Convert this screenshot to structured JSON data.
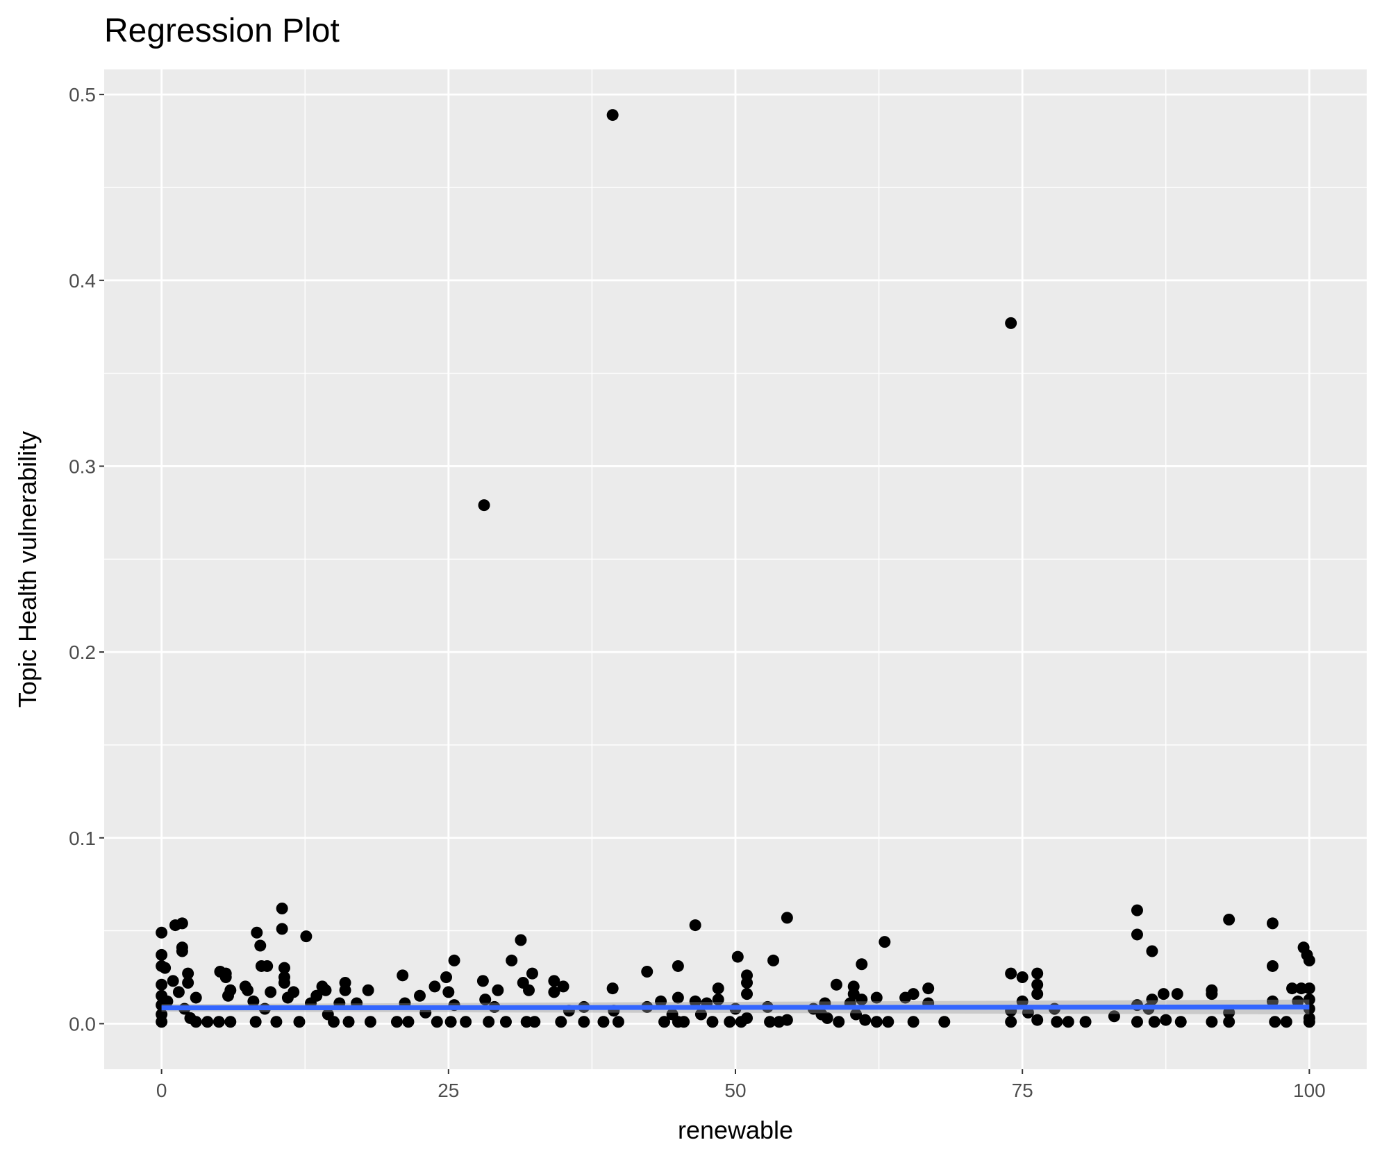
{
  "chart_data": {
    "type": "scatter",
    "title": "Regression Plot",
    "x_label": "renewable",
    "y_label": "Topic Health vulnerability",
    "x": [
      0,
      0,
      0,
      0.3,
      0,
      0,
      0,
      0,
      0,
      0.5,
      1,
      1.2,
      1.8,
      1.8,
      1.8,
      2.3,
      2.3,
      1.5,
      2,
      2.5,
      3,
      3,
      4,
      5,
      5.1,
      5.6,
      5.6,
      5.8,
      6,
      6,
      7.3,
      7.5,
      8,
      8.2,
      8.3,
      8.6,
      8.7,
      9.2,
      9.5,
      9,
      10,
      10.5,
      10.5,
      10.7,
      10.7,
      10.7,
      11,
      11.5,
      12,
      12.6,
      13,
      13.5,
      14,
      14.3,
      14.5,
      15,
      15.5,
      16,
      16,
      16.3,
      17,
      18,
      18.2,
      20.5,
      21,
      21.2,
      21.5,
      22.5,
      23,
      23.8,
      24,
      24.8,
      25,
      25.2,
      25.5,
      25.5,
      26.5,
      28,
      28.1,
      28.2,
      28.5,
      29,
      29.3,
      30,
      30.5,
      31.3,
      31.5,
      31.8,
      32,
      32.3,
      32.5,
      34.2,
      34.2,
      34.8,
      35,
      35.5,
      36.8,
      36.8,
      38.5,
      39.3,
      39.3,
      39.4,
      39.8,
      42.3,
      42.3,
      43.5,
      43.8,
      44.5,
      45,
      45,
      45,
      45.5,
      46.5,
      46.5,
      47,
      47.5,
      48,
      48.5,
      48.5,
      49.5,
      50,
      50.2,
      50.5,
      51,
      51,
      51,
      51,
      52.8,
      53,
      53.3,
      53.8,
      54.5,
      54.5,
      56.8,
      57.5,
      57.8,
      58,
      58.8,
      59,
      60,
      60.3,
      60.3,
      60.5,
      61,
      61,
      61.3,
      62.3,
      62.3,
      63,
      63.3,
      64.8,
      65.5,
      65.5,
      66.8,
      66.8,
      68.2,
      74,
      74,
      74,
      74,
      75,
      75,
      75.5,
      76.3,
      76.3,
      76.3,
      76.3,
      77.8,
      78,
      79,
      80.5,
      83,
      85,
      85,
      85,
      85,
      86,
      86.3,
      86.3,
      86.5,
      87.3,
      87.5,
      88.5,
      88.8,
      91.5,
      91.5,
      91.5,
      93,
      93,
      93,
      96.8,
      96.8,
      96.8,
      97,
      98,
      98.5,
      99,
      99.3,
      99.5,
      99.8,
      100,
      100,
      100,
      100,
      100,
      100
    ],
    "y": [
      0.049,
      0.037,
      0.031,
      0.03,
      0.021,
      0.015,
      0.01,
      0.005,
      0.001,
      0.012,
      0.023,
      0.053,
      0.054,
      0.041,
      0.039,
      0.027,
      0.022,
      0.017,
      0.008,
      0.003,
      0.014,
      0.001,
      0.001,
      0.001,
      0.028,
      0.027,
      0.025,
      0.015,
      0.018,
      0.001,
      0.02,
      0.018,
      0.012,
      0.001,
      0.049,
      0.042,
      0.031,
      0.031,
      0.017,
      0.008,
      0.001,
      0.062,
      0.051,
      0.03,
      0.025,
      0.022,
      0.014,
      0.017,
      0.001,
      0.047,
      0.011,
      0.015,
      0.02,
      0.018,
      0.005,
      0.001,
      0.011,
      0.022,
      0.018,
      0.001,
      0.011,
      0.018,
      0.001,
      0.001,
      0.026,
      0.011,
      0.001,
      0.015,
      0.006,
      0.02,
      0.001,
      0.025,
      0.017,
      0.001,
      0.034,
      0.01,
      0.001,
      0.023,
      0.279,
      0.013,
      0.001,
      0.009,
      0.018,
      0.001,
      0.034,
      0.045,
      0.022,
      0.001,
      0.018,
      0.027,
      0.001,
      0.023,
      0.017,
      0.001,
      0.02,
      0.007,
      0.009,
      0.001,
      0.001,
      0.489,
      0.019,
      0.007,
      0.001,
      0.028,
      0.009,
      0.012,
      0.001,
      0.005,
      0.001,
      0.031,
      0.014,
      0.001,
      0.053,
      0.012,
      0.005,
      0.011,
      0.001,
      0.019,
      0.013,
      0.001,
      0.008,
      0.036,
      0.001,
      0.026,
      0.022,
      0.016,
      0.003,
      0.009,
      0.001,
      0.034,
      0.001,
      0.057,
      0.002,
      0.008,
      0.005,
      0.011,
      0.003,
      0.021,
      0.001,
      0.011,
      0.02,
      0.016,
      0.005,
      0.032,
      0.013,
      0.002,
      0.014,
      0.001,
      0.044,
      0.001,
      0.014,
      0.016,
      0.001,
      0.019,
      0.011,
      0.001,
      0.377,
      0.027,
      0.007,
      0.001,
      0.025,
      0.012,
      0.006,
      0.027,
      0.021,
      0.016,
      0.002,
      0.008,
      0.001,
      0.001,
      0.001,
      0.004,
      0.061,
      0.048,
      0.01,
      0.001,
      0.008,
      0.013,
      0.039,
      0.001,
      0.016,
      0.002,
      0.016,
      0.001,
      0.018,
      0.016,
      0.001,
      0.056,
      0.006,
      0.001,
      0.054,
      0.031,
      0.012,
      0.001,
      0.001,
      0.019,
      0.012,
      0.019,
      0.041,
      0.037,
      0.034,
      0.019,
      0.013,
      0.008,
      0.003,
      0.001
    ],
    "color": "#000000",
    "regression": {
      "x": [
        0,
        100
      ],
      "y": [
        0.0085,
        0.009
      ],
      "lower": [
        0.0065,
        0.005
      ],
      "upper": [
        0.0105,
        0.013
      ],
      "color": "#3366ff",
      "band_color": "#999999"
    },
    "xlim": [
      -5,
      105
    ],
    "ylim": [
      -0.0245,
      0.5135
    ],
    "xticks": [
      0,
      25,
      50,
      75,
      100
    ],
    "yticks": [
      {
        "value": 0,
        "label": "0.0"
      },
      0.1,
      0.2,
      0.3,
      0.4,
      0.5
    ],
    "minor_xticks": [
      12.5,
      37.5,
      62.5,
      87.5
    ],
    "minor_yticks": [
      0.05,
      0.15,
      0.25,
      0.35,
      0.45
    ],
    "grid": true
  }
}
